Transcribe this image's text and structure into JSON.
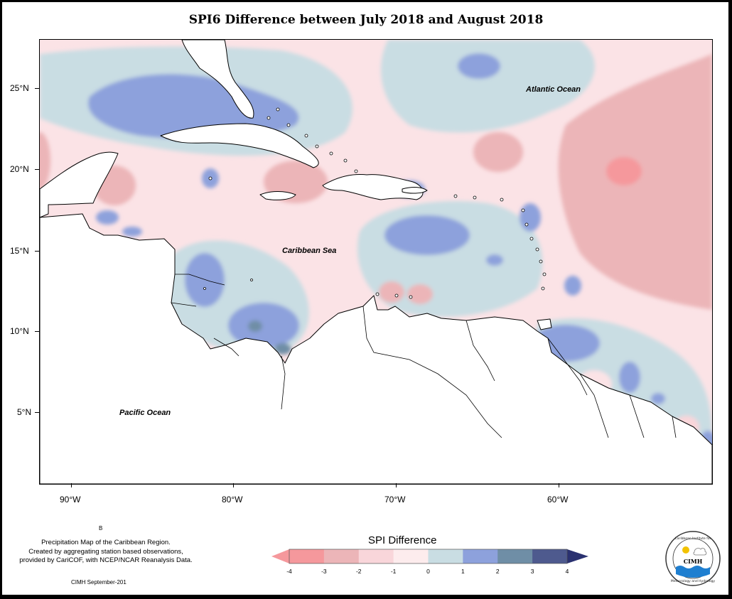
{
  "title": "SPI6 Difference between July 2018 and August 2018",
  "map_labels": {
    "atlantic": "Atlantic Ocean",
    "caribbean": "Caribbean Sea",
    "pacific": "Pacific Ocean"
  },
  "latitude_ticks": [
    "25°N",
    "20°N",
    "15°N",
    "10°N",
    "5°N"
  ],
  "longitude_ticks": [
    "90°W",
    "80°W",
    "70°W",
    "60°W"
  ],
  "notes": {
    "stray_mark": "B",
    "description_line1": "Precipitation Map of the Caribbean Region.",
    "description_line2": "Created by aggregating station based observations,",
    "description_line3": "provided by CariCOF, with NCEP/NCAR Reanalysis Data.",
    "credit": "CIMH September-201"
  },
  "legend": {
    "title": "SPI Difference",
    "ticks": [
      "-4",
      "-3",
      "-2",
      "-1",
      "0",
      "1",
      "2",
      "3",
      "4"
    ],
    "colors": [
      "#f5989c",
      "#ecb5b8",
      "#f9d6da",
      "#fdeced",
      "#c9dde3",
      "#8da1dc",
      "#6f8ea6",
      "#4e5a8e",
      "#2a3170"
    ],
    "under_color": "#f5989c",
    "over_color": "#2a3170"
  },
  "logo": {
    "ring_text_top": "Caribbean Institute for",
    "ring_text_bottom": "Meteorology and Hydrology",
    "abbrev": "CIMH"
  },
  "colors": {
    "land": "#ffffff",
    "coast": "#000000"
  }
}
